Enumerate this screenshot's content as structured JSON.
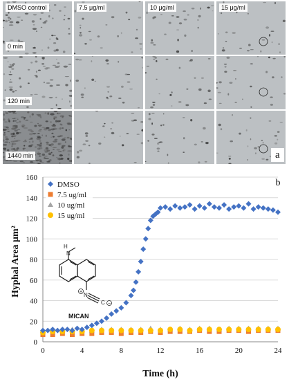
{
  "panel_a": {
    "letter": "a",
    "columns": [
      "DMSO control",
      "7.5 μg/ml",
      "10 μg/ml",
      "15 μg/ml"
    ],
    "rows": [
      "0 min",
      "120 min",
      "1440 min"
    ]
  },
  "panel_b": {
    "letter": "b",
    "molecule_label": "MICAN"
  },
  "chart_data": {
    "type": "scatter",
    "title": "",
    "xlabel": "Time (h)",
    "ylabel": "Hyphal Area μm²",
    "xlim": [
      0,
      24
    ],
    "ylim": [
      0,
      160
    ],
    "xticks": [
      0,
      4,
      8,
      12,
      16,
      20,
      24
    ],
    "yticks": [
      0,
      20,
      40,
      60,
      80,
      100,
      120,
      140,
      160
    ],
    "legend_position": "top-left",
    "series": [
      {
        "name": "DMSO",
        "color": "#4472c4",
        "marker": "diamond",
        "x": [
          0,
          0.5,
          1,
          1.5,
          2,
          2.5,
          3,
          3.5,
          4,
          4.5,
          5,
          5.5,
          6,
          6.5,
          7,
          7.5,
          8,
          8.5,
          9,
          9.25,
          9.5,
          9.75,
          10,
          10.25,
          10.5,
          10.75,
          11,
          11.25,
          11.5,
          11.75,
          12,
          12.5,
          13,
          13.5,
          14,
          14.5,
          15,
          15.5,
          16,
          16.5,
          17,
          17.5,
          18,
          18.5,
          19,
          19.5,
          20,
          20.5,
          21,
          21.5,
          22,
          22.5,
          23,
          23.5,
          24
        ],
        "y": [
          11,
          11,
          12,
          11,
          12,
          12,
          11,
          13,
          12,
          14,
          16,
          18,
          20,
          23,
          27,
          30,
          33,
          38,
          45,
          50,
          58,
          68,
          78,
          90,
          100,
          110,
          118,
          122,
          124,
          126,
          130,
          131,
          129,
          132,
          130,
          131,
          133,
          129,
          132,
          130,
          134,
          131,
          130,
          133,
          129,
          131,
          132,
          130,
          134,
          129,
          131,
          130,
          129,
          128,
          126
        ]
      },
      {
        "name": "7.5 ug/ml",
        "color": "#ed7d31",
        "marker": "square",
        "x": [
          0,
          1,
          2,
          3,
          4,
          5,
          6,
          7,
          8,
          9,
          10,
          11,
          12,
          13,
          14,
          15,
          16,
          17,
          18,
          19,
          20,
          21,
          22,
          23,
          24
        ],
        "y": [
          7,
          7,
          8,
          7,
          8,
          8,
          9,
          9,
          8,
          9,
          9,
          10,
          9,
          10,
          10,
          10,
          11,
          10,
          10,
          11,
          11,
          10,
          11,
          11,
          11
        ]
      },
      {
        "name": "10 ug/ml",
        "color": "#a5a5a5",
        "marker": "triangle",
        "x": [
          0,
          1,
          2,
          3,
          4,
          5,
          6,
          7,
          8,
          9,
          10,
          11,
          12,
          13,
          14,
          15,
          16,
          17,
          18,
          19,
          20,
          21,
          22,
          23,
          24
        ],
        "y": [
          11,
          11,
          11,
          12,
          12,
          11,
          12,
          12,
          12,
          12,
          12,
          13,
          12,
          12,
          13,
          12,
          13,
          13,
          12,
          13,
          13,
          13,
          13,
          13,
          13
        ]
      },
      {
        "name": "15 ug/ml",
        "color": "#ffc000",
        "marker": "circle",
        "x": [
          0,
          1,
          2,
          3,
          4,
          5,
          6,
          7,
          8,
          9,
          10,
          11,
          12,
          13,
          14,
          15,
          16,
          17,
          18,
          19,
          20,
          21,
          22,
          23,
          24
        ],
        "y": [
          9,
          10,
          10,
          10,
          10,
          11,
          11,
          11,
          11,
          11,
          11,
          11,
          11,
          12,
          12,
          11,
          12,
          12,
          12,
          12,
          12,
          12,
          12,
          12,
          12
        ]
      }
    ]
  }
}
